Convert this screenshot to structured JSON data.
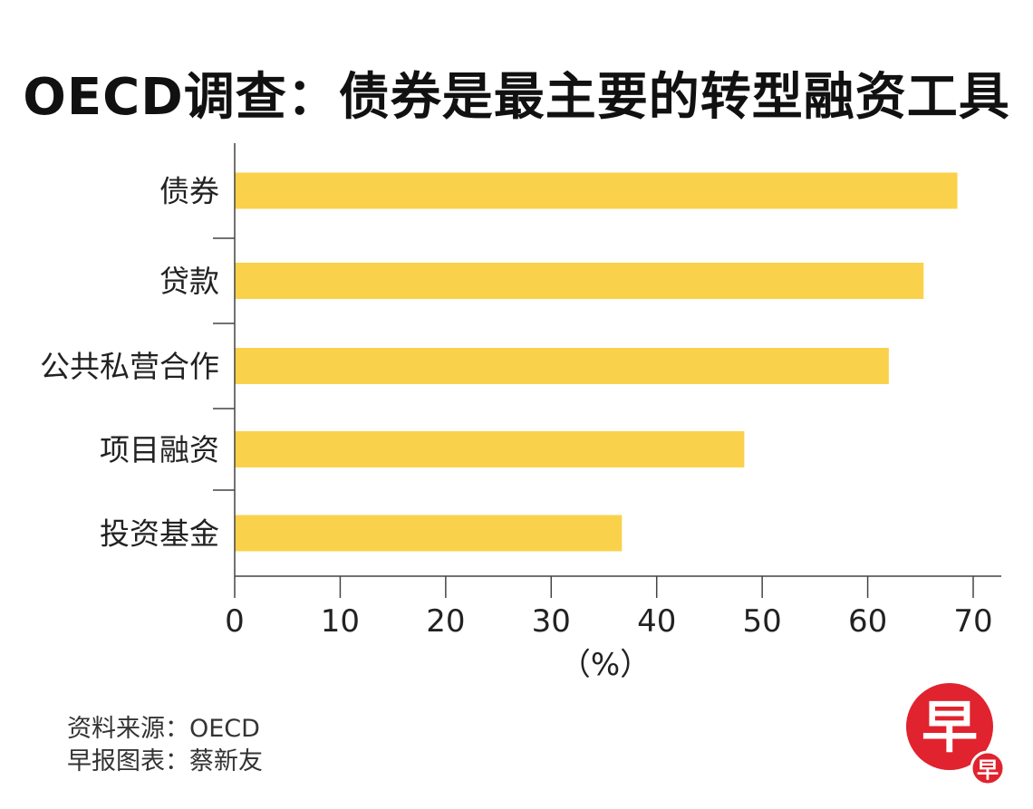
{
  "title": "OECD调查：债券是最主要的转型融资工具",
  "chart_data": {
    "type": "bar",
    "orientation": "horizontal",
    "title": "OECD调查：债券是最主要的转型融资工具",
    "categories": [
      "债券",
      "贷款",
      "公共私营合作",
      "项目融资",
      "投资基金"
    ],
    "values": [
      68.5,
      65.3,
      62.0,
      48.3,
      36.7
    ],
    "xlabel": "（%）",
    "xlim": [
      0,
      73
    ],
    "xticks": [
      "0",
      "10",
      "20",
      "30",
      "40",
      "50",
      "60",
      "70"
    ],
    "bar_color": "#FAD14A",
    "grid": false
  },
  "footer": {
    "source": "资料来源：OECD",
    "credit": "早报图表：蔡新友"
  },
  "logo": {
    "main_char": "早",
    "small_char": "早",
    "color": "#E0232E"
  }
}
